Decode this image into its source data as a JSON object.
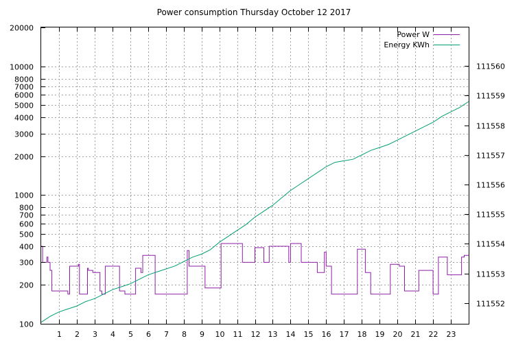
{
  "chart_data": {
    "type": "line",
    "title": "Power consumption Thursday October 12 2017",
    "xlabel": "",
    "ylabel": "",
    "y2label": "",
    "xlim": [
      0,
      24
    ],
    "ylim": [
      100,
      20000
    ],
    "yscale": "log",
    "y2lim": [
      111551.3,
      111561.3
    ],
    "grid": true,
    "legend_position": "top-right",
    "x_ticks": [
      1,
      2,
      3,
      4,
      5,
      6,
      7,
      8,
      9,
      10,
      11,
      12,
      13,
      14,
      15,
      16,
      17,
      18,
      19,
      20,
      21,
      22,
      23
    ],
    "y_ticks": [
      100,
      200,
      300,
      400,
      500,
      600,
      700,
      800,
      1000,
      2000,
      3000,
      4000,
      5000,
      6000,
      7000,
      8000,
      10000,
      20000
    ],
    "y2_ticks": [
      111552,
      111553,
      111554,
      111555,
      111556,
      111557,
      111558,
      111559,
      111560
    ],
    "series": [
      {
        "name": "Power W",
        "axis": "y",
        "color": "#8e1ea6",
        "step": true,
        "x": [
          0,
          0.08,
          0.32,
          0.38,
          0.5,
          0.6,
          0.7,
          1.5,
          1.6,
          2.1,
          2.15,
          2.2,
          2.6,
          2.65,
          2.9,
          3.3,
          3.4,
          3.6,
          3.85,
          4.4,
          4.5,
          4.7,
          5.3,
          5.6,
          5.7,
          6.4,
          7.7,
          8.2,
          8.3,
          9.2,
          10.1,
          10.3,
          11.3,
          11.4,
          12.0,
          12.5,
          12.8,
          13.7,
          13.9,
          14.0,
          14.6,
          15.2,
          15.3,
          15.5,
          15.9,
          16.0,
          16.3,
          17.6,
          17.75,
          18.2,
          18.5,
          19.4,
          19.6,
          20.1,
          20.4,
          21.2,
          22.0,
          22.3,
          22.8,
          23.6,
          23.75,
          24
        ],
        "y": [
          400,
          300,
          330,
          300,
          260,
          180,
          180,
          170,
          280,
          290,
          170,
          170,
          270,
          260,
          250,
          180,
          170,
          280,
          280,
          180,
          180,
          170,
          270,
          250,
          340,
          170,
          170,
          370,
          280,
          190,
          420,
          420,
          300,
          300,
          390,
          300,
          400,
          400,
          300,
          420,
          300,
          300,
          300,
          250,
          360,
          280,
          170,
          170,
          380,
          250,
          170,
          170,
          290,
          280,
          180,
          260,
          170,
          330,
          240,
          330,
          340,
          340
        ]
      },
      {
        "name": "Energy KWh",
        "axis": "y2",
        "color": "#009e73",
        "step": false,
        "x": [
          0,
          0.5,
          1,
          1.5,
          2,
          2.5,
          3,
          3.5,
          4,
          4.5,
          5,
          5.5,
          6,
          6.5,
          7,
          7.5,
          8,
          8.5,
          9,
          9.5,
          10,
          10.5,
          11,
          11.5,
          12,
          12.5,
          13,
          13.5,
          14,
          14.5,
          15,
          15.5,
          16,
          16.5,
          17,
          17.5,
          18,
          18.5,
          19,
          19.5,
          20,
          20.5,
          21,
          21.5,
          22,
          22.5,
          23,
          23.5,
          24
        ],
        "y": [
          111551.35,
          111551.55,
          111551.7,
          111551.8,
          111551.9,
          111552.05,
          111552.15,
          111552.3,
          111552.45,
          111552.55,
          111552.65,
          111552.8,
          111552.95,
          111553.05,
          111553.15,
          111553.25,
          111553.4,
          111553.55,
          111553.65,
          111553.8,
          111554.05,
          111554.25,
          111554.45,
          111554.65,
          111554.9,
          111555.1,
          111555.3,
          111555.55,
          111555.8,
          111556.0,
          111556.2,
          111556.4,
          111556.6,
          111556.75,
          111556.8,
          111556.85,
          111557.0,
          111557.15,
          111557.25,
          111557.35,
          111557.5,
          111557.65,
          111557.8,
          111557.95,
          111558.1,
          111558.3,
          111558.45,
          111558.6,
          111558.8
        ]
      }
    ]
  }
}
